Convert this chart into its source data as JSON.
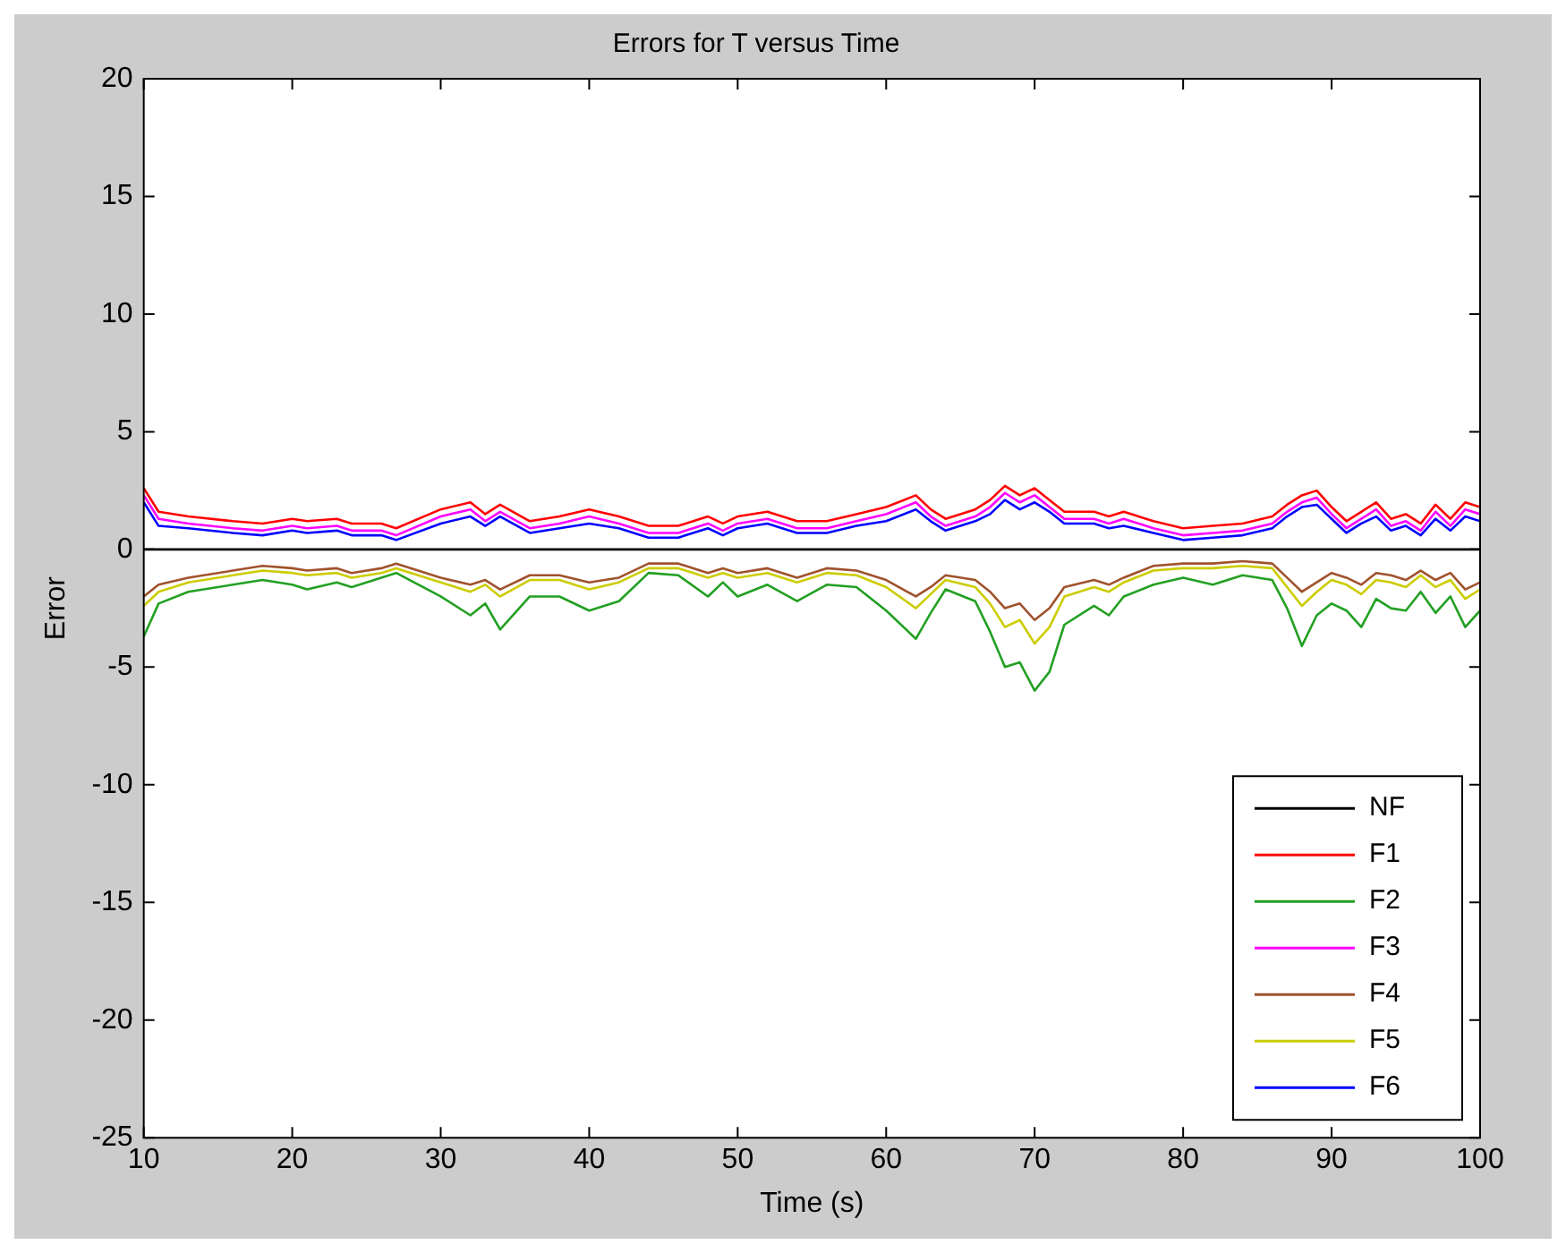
{
  "chart_data": {
    "type": "line",
    "title": "Errors for T versus Time",
    "xlabel": "Time (s)",
    "ylabel": "Error",
    "x": [
      10,
      11,
      13,
      16,
      18,
      20,
      21,
      23,
      24,
      26,
      27,
      30,
      32,
      33,
      34,
      36,
      38,
      40,
      42,
      44,
      46,
      48,
      49,
      50,
      52,
      54,
      56,
      58,
      60,
      62,
      63,
      64,
      66,
      67,
      68,
      69,
      70,
      71,
      72,
      74,
      75,
      76,
      78,
      80,
      82,
      84,
      86,
      87,
      88,
      89,
      90,
      91,
      92,
      93,
      94,
      95,
      96,
      97,
      98,
      99,
      100
    ],
    "series": [
      {
        "name": "NF",
        "color": "#000000",
        "x": [
          10,
          100
        ],
        "values": [
          0,
          0
        ]
      },
      {
        "name": "F1",
        "color": "#ff0000",
        "values": [
          2.6,
          1.6,
          1.4,
          1.2,
          1.1,
          1.3,
          1.2,
          1.3,
          1.1,
          1.1,
          0.9,
          1.7,
          2.0,
          1.5,
          1.9,
          1.2,
          1.4,
          1.7,
          1.4,
          1.0,
          1.0,
          1.4,
          1.1,
          1.4,
          1.6,
          1.2,
          1.2,
          1.5,
          1.8,
          2.3,
          1.7,
          1.3,
          1.7,
          2.1,
          2.7,
          2.3,
          2.6,
          2.1,
          1.6,
          1.6,
          1.4,
          1.6,
          1.2,
          0.9,
          1.0,
          1.1,
          1.4,
          1.9,
          2.3,
          2.5,
          1.8,
          1.2,
          1.6,
          2.0,
          1.3,
          1.5,
          1.1,
          1.9,
          1.3,
          2.0,
          1.8
        ]
      },
      {
        "name": "F2",
        "color": "#22a022",
        "values": [
          -3.7,
          -2.3,
          -1.8,
          -1.5,
          -1.3,
          -1.5,
          -1.7,
          -1.4,
          -1.6,
          -1.2,
          -1.0,
          -2.0,
          -2.8,
          -2.3,
          -3.4,
          -2.0,
          -2.0,
          -2.6,
          -2.2,
          -1.0,
          -1.1,
          -2.0,
          -1.4,
          -2.0,
          -1.5,
          -2.2,
          -1.5,
          -1.6,
          -2.6,
          -3.8,
          -2.7,
          -1.7,
          -2.2,
          -3.5,
          -5.0,
          -4.8,
          -6.0,
          -5.2,
          -3.2,
          -2.4,
          -2.8,
          -2.0,
          -1.5,
          -1.2,
          -1.5,
          -1.1,
          -1.3,
          -2.5,
          -4.1,
          -2.8,
          -2.3,
          -2.6,
          -3.3,
          -2.1,
          -2.5,
          -2.6,
          -1.8,
          -2.7,
          -2.0,
          -3.3,
          -2.6
        ]
      },
      {
        "name": "F3",
        "color": "#ff00ff",
        "values": [
          2.3,
          1.3,
          1.1,
          0.9,
          0.8,
          1.0,
          0.9,
          1.0,
          0.8,
          0.8,
          0.6,
          1.4,
          1.7,
          1.2,
          1.6,
          0.9,
          1.1,
          1.4,
          1.1,
          0.7,
          0.7,
          1.1,
          0.8,
          1.1,
          1.3,
          0.9,
          0.9,
          1.2,
          1.5,
          2.0,
          1.4,
          1.0,
          1.4,
          1.8,
          2.4,
          2.0,
          2.3,
          1.8,
          1.3,
          1.3,
          1.1,
          1.3,
          0.9,
          0.6,
          0.7,
          0.8,
          1.1,
          1.6,
          2.0,
          2.2,
          1.5,
          0.9,
          1.3,
          1.7,
          1.0,
          1.2,
          0.8,
          1.6,
          1.0,
          1.7,
          1.5
        ]
      },
      {
        "name": "F4",
        "color": "#a0522d",
        "values": [
          -2.0,
          -1.5,
          -1.2,
          -0.9,
          -0.7,
          -0.8,
          -0.9,
          -0.8,
          -1.0,
          -0.8,
          -0.6,
          -1.2,
          -1.5,
          -1.3,
          -1.7,
          -1.1,
          -1.1,
          -1.4,
          -1.2,
          -0.6,
          -0.6,
          -1.0,
          -0.8,
          -1.0,
          -0.8,
          -1.2,
          -0.8,
          -0.9,
          -1.3,
          -2.0,
          -1.6,
          -1.1,
          -1.3,
          -1.8,
          -2.5,
          -2.3,
          -3.0,
          -2.5,
          -1.6,
          -1.3,
          -1.5,
          -1.2,
          -0.7,
          -0.6,
          -0.6,
          -0.5,
          -0.6,
          -1.2,
          -1.8,
          -1.4,
          -1.0,
          -1.2,
          -1.5,
          -1.0,
          -1.1,
          -1.3,
          -0.9,
          -1.3,
          -1.0,
          -1.7,
          -1.4
        ]
      },
      {
        "name": "F5",
        "color": "#cccc00",
        "values": [
          -2.4,
          -1.8,
          -1.4,
          -1.1,
          -0.9,
          -1.0,
          -1.1,
          -1.0,
          -1.2,
          -1.0,
          -0.8,
          -1.4,
          -1.8,
          -1.5,
          -2.0,
          -1.3,
          -1.3,
          -1.7,
          -1.4,
          -0.8,
          -0.8,
          -1.2,
          -1.0,
          -1.2,
          -1.0,
          -1.4,
          -1.0,
          -1.1,
          -1.6,
          -2.5,
          -1.9,
          -1.3,
          -1.6,
          -2.3,
          -3.3,
          -3.0,
          -4.0,
          -3.3,
          -2.0,
          -1.6,
          -1.8,
          -1.4,
          -0.9,
          -0.8,
          -0.8,
          -0.7,
          -0.8,
          -1.6,
          -2.4,
          -1.8,
          -1.3,
          -1.5,
          -1.9,
          -1.3,
          -1.4,
          -1.6,
          -1.1,
          -1.6,
          -1.3,
          -2.1,
          -1.7
        ]
      },
      {
        "name": "F6",
        "color": "#0000ff",
        "values": [
          2.0,
          1.0,
          0.9,
          0.7,
          0.6,
          0.8,
          0.7,
          0.8,
          0.6,
          0.6,
          0.4,
          1.1,
          1.4,
          1.0,
          1.4,
          0.7,
          0.9,
          1.1,
          0.9,
          0.5,
          0.5,
          0.9,
          0.6,
          0.9,
          1.1,
          0.7,
          0.7,
          1.0,
          1.2,
          1.7,
          1.2,
          0.8,
          1.2,
          1.5,
          2.1,
          1.7,
          2.0,
          1.6,
          1.1,
          1.1,
          0.9,
          1.0,
          0.7,
          0.4,
          0.5,
          0.6,
          0.9,
          1.4,
          1.8,
          1.9,
          1.3,
          0.7,
          1.1,
          1.4,
          0.8,
          1.0,
          0.6,
          1.3,
          0.8,
          1.4,
          1.2
        ]
      }
    ],
    "xlim": [
      10,
      100
    ],
    "xticks": [
      10,
      20,
      30,
      40,
      50,
      60,
      70,
      80,
      90,
      100
    ],
    "ylim": [
      -25,
      20
    ],
    "yticks": [
      -25,
      -20,
      -15,
      -10,
      -5,
      0,
      5,
      10,
      15,
      20
    ],
    "grid": false,
    "legend": "bottom right",
    "marker": "none",
    "line_style": "solid"
  }
}
